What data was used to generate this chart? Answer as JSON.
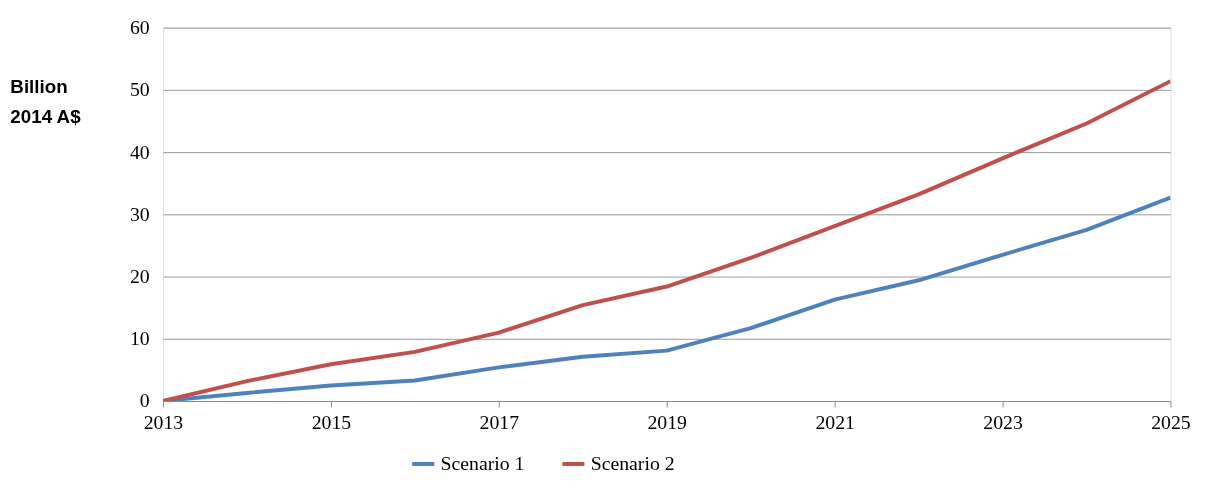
{
  "chart_data": {
    "type": "line",
    "ylabel": "Billion 2014 A$",
    "x": [
      2013,
      2014,
      2015,
      2016,
      2017,
      2018,
      2019,
      2020,
      2021,
      2022,
      2023,
      2024,
      2025
    ],
    "series": [
      {
        "name": "Scenario 1",
        "color": "#4f81bd",
        "values": [
          0,
          1.3,
          2.5,
          3.3,
          5.4,
          7.1,
          8.1,
          11.7,
          16.3,
          19.4,
          23.5,
          27.5,
          32.7
        ]
      },
      {
        "name": "Scenario 2",
        "color": "#c0504d",
        "values": [
          0,
          3.2,
          5.9,
          7.9,
          11.0,
          15.4,
          18.4,
          23.0,
          28.1,
          33.2,
          39.0,
          44.6,
          51.4
        ]
      }
    ],
    "xlim": [
      2013,
      2025
    ],
    "xticks": [
      2013,
      2015,
      2017,
      2019,
      2021,
      2023,
      2025
    ],
    "ylim": [
      0,
      60
    ],
    "yticks": [
      0,
      10,
      20,
      30,
      40,
      50,
      60
    ],
    "grid": "y",
    "legend": "bottom",
    "marker": "none",
    "line_style": "solid"
  }
}
